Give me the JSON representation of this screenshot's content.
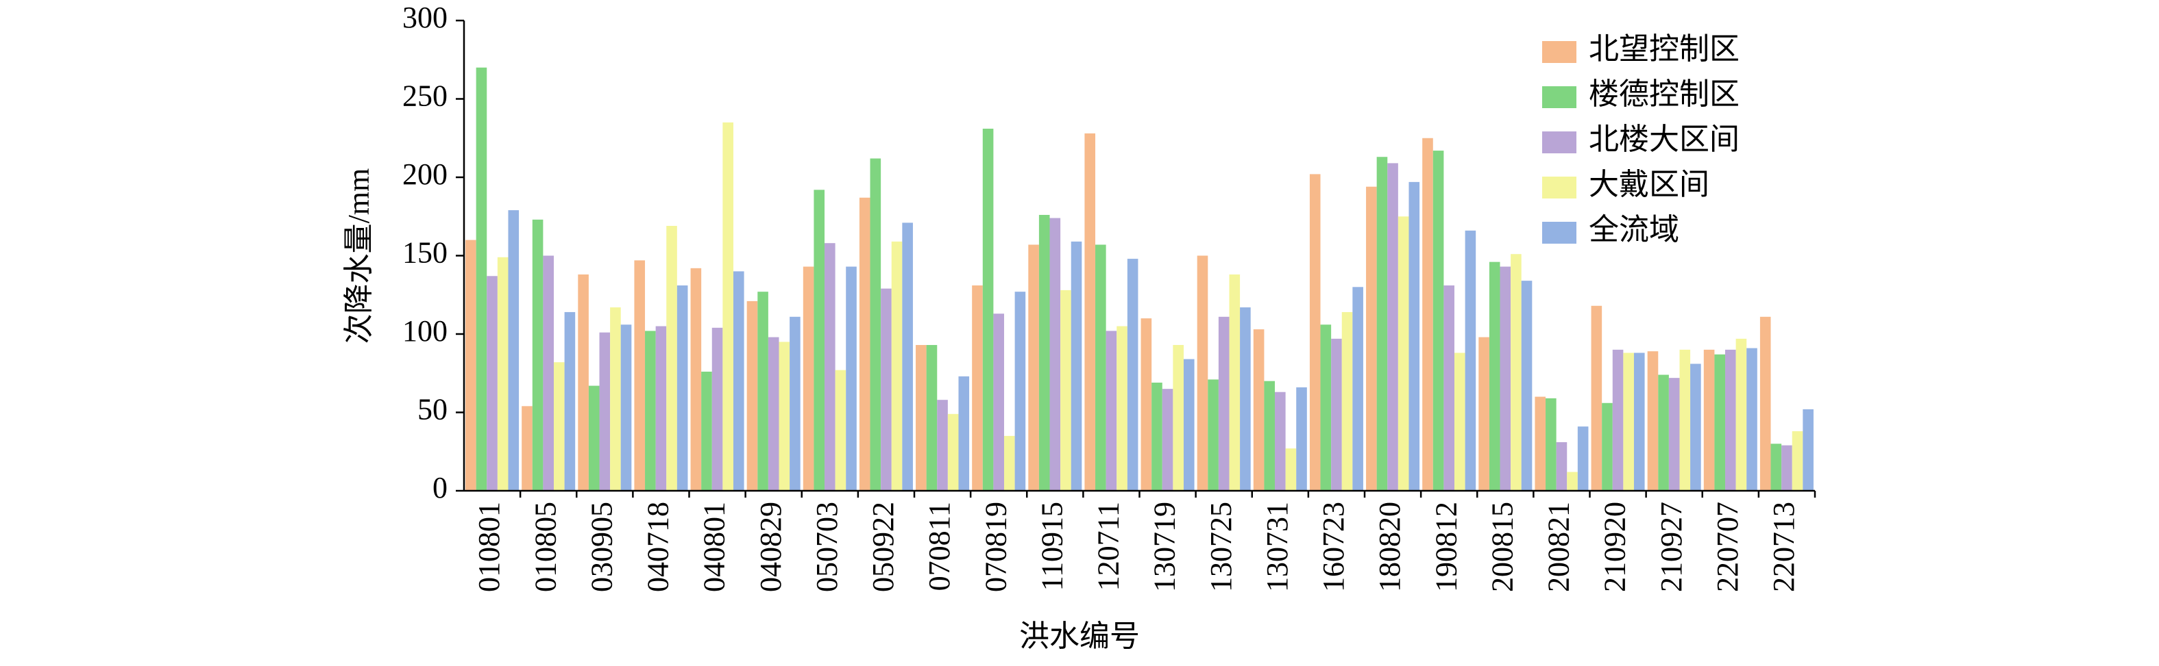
{
  "chart_data": {
    "type": "bar",
    "legend": "upper right",
    "xlabel": "洪水编号",
    "ylabel": "次降水量/mm",
    "categories": [
      "010801",
      "010805",
      "030905",
      "040718",
      "040801",
      "040829",
      "050703",
      "050922",
      "070811",
      "070819",
      "110915",
      "120711",
      "130719",
      "130725",
      "130731",
      "160723",
      "180820",
      "190812",
      "200815",
      "200821",
      "210920",
      "210927",
      "220707",
      "220713"
    ],
    "series": [
      {
        "name": "北望控制区",
        "color": "#f7b98a",
        "values": [
          160,
          54,
          138,
          147,
          142,
          121,
          143,
          187,
          93,
          131,
          157,
          228,
          110,
          150,
          103,
          202,
          194,
          225,
          98,
          60,
          118,
          89,
          90,
          111
        ]
      },
      {
        "name": "楼德控制区",
        "color": "#7fd580",
        "values": [
          270,
          173,
          67,
          102,
          76,
          127,
          192,
          212,
          93,
          231,
          176,
          157,
          69,
          71,
          70,
          106,
          213,
          217,
          146,
          59,
          56,
          74,
          87,
          30
        ]
      },
      {
        "name": "北楼大区间",
        "color": "#b9a5d6",
        "values": [
          137,
          150,
          101,
          105,
          104,
          98,
          158,
          129,
          58,
          113,
          174,
          102,
          65,
          111,
          63,
          97,
          209,
          131,
          143,
          31,
          90,
          72,
          90,
          29
        ]
      },
      {
        "name": "大戴区间",
        "color": "#f4f59a",
        "values": [
          149,
          82,
          117,
          169,
          235,
          95,
          77,
          159,
          49,
          35,
          128,
          105,
          93,
          138,
          27,
          114,
          175,
          88,
          151,
          12,
          88,
          90,
          97,
          38
        ]
      },
      {
        "name": "全流域",
        "color": "#93b2e3",
        "values": [
          179,
          114,
          106,
          131,
          140,
          111,
          143,
          171,
          73,
          127,
          159,
          148,
          84,
          117,
          66,
          130,
          197,
          166,
          134,
          41,
          88,
          81,
          91,
          52
        ]
      }
    ],
    "ylim": [
      0,
      300
    ],
    "yticks": [
      0,
      50,
      100,
      150,
      200,
      250,
      300
    ]
  }
}
